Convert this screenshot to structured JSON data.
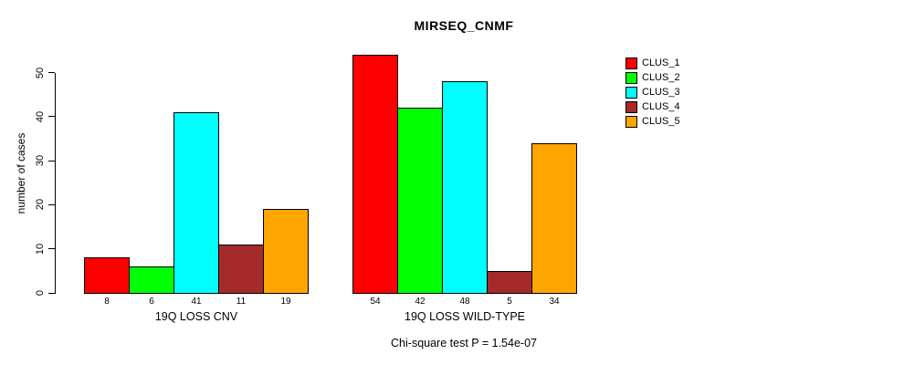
{
  "figure": {
    "title": "MIRSEQ_CNMF",
    "y_axis_label": "number of cases",
    "annotation": "Chi-square test P = 1.54e-07"
  },
  "legend": {
    "position": "top-right",
    "items": [
      {
        "label": "CLUS_1",
        "color": "#FF0000"
      },
      {
        "label": "CLUS_2",
        "color": "#00FF00"
      },
      {
        "label": "CLUS_3",
        "color": "#00FFFF"
      },
      {
        "label": "CLUS_4",
        "color": "#A52A2A"
      },
      {
        "label": "CLUS_5",
        "color": "#FFA500"
      }
    ]
  },
  "chart_data": {
    "type": "bar",
    "title": "MIRSEQ_CNMF",
    "xlabel": "",
    "ylabel": "number of cases",
    "ylim": [
      0,
      50
    ],
    "yticks": [
      0,
      10,
      20,
      30,
      40,
      50
    ],
    "grid": false,
    "legend_position": "top-right",
    "categories": [
      "19Q LOSS CNV",
      "19Q LOSS WILD-TYPE"
    ],
    "series": [
      {
        "name": "CLUS_1",
        "color": "#FF0000",
        "values": [
          8,
          54
        ]
      },
      {
        "name": "CLUS_2",
        "color": "#00FF00",
        "values": [
          6,
          42
        ]
      },
      {
        "name": "CLUS_3",
        "color": "#00FFFF",
        "values": [
          41,
          48
        ]
      },
      {
        "name": "CLUS_4",
        "color": "#A52A2A",
        "values": [
          11,
          5
        ]
      },
      {
        "name": "CLUS_5",
        "color": "#FFA500",
        "values": [
          19,
          34
        ]
      }
    ],
    "bar_value_labels": {
      "19Q LOSS CNV": [
        8,
        6,
        41,
        11,
        19
      ],
      "19Q LOSS WILD-TYPE": [
        54,
        42,
        48,
        5,
        34
      ]
    },
    "annotation": "Chi-square test P = 1.54e-07"
  }
}
